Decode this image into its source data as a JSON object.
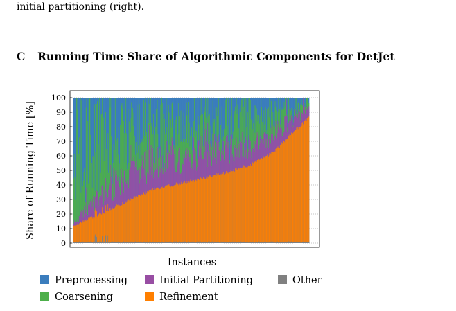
{
  "intro_text": "initial partitioning (right).",
  "section": {
    "number": "C",
    "title": "Running Time Share of Algorithmic Components for DetJet"
  },
  "colors": {
    "preprocessing": "#3b7dbd",
    "coarsening": "#4daf4a",
    "initial_partitioning": "#984ea3",
    "refinement": "#ff7f00",
    "other": "#808080"
  },
  "chart_data": {
    "type": "area",
    "subtype": "stacked-100-percent per instance, instances sorted by refinement share",
    "xlabel": "Instances",
    "ylabel": "Share of Running Time [%]",
    "ylim": [
      0,
      100
    ],
    "yticks": [
      "0",
      "10",
      "20",
      "30",
      "40",
      "50",
      "60",
      "70",
      "80",
      "90",
      "100"
    ],
    "grid": true,
    "legend_position": "bottom",
    "series": [
      {
        "name": "Preprocessing",
        "stack_order": 5
      },
      {
        "name": "Initial Partitioning",
        "stack_order": 3
      },
      {
        "name": "Other",
        "stack_order": 1
      },
      {
        "name": "Coarsening",
        "stack_order": 4
      },
      {
        "name": "Refinement",
        "stack_order": 2
      }
    ],
    "refinement_profile": {
      "x_fraction": [
        0,
        0.05,
        0.15,
        0.25,
        0.35,
        0.5,
        0.65,
        0.75,
        0.85,
        0.95,
        1.0
      ],
      "value": [
        11,
        15,
        22,
        30,
        37,
        42,
        48,
        53,
        62,
        78,
        86
      ]
    },
    "initial_partitioning_profile": {
      "x_fraction": [
        0,
        0.05,
        0.15,
        0.25,
        0.35,
        0.5,
        0.65,
        0.75,
        0.85,
        0.95,
        1.0
      ],
      "value": [
        3,
        8,
        14,
        18,
        20,
        19,
        17,
        15,
        13,
        9,
        6
      ]
    },
    "coarsening_profile": {
      "x_fraction": [
        0,
        0.05,
        0.15,
        0.25,
        0.35,
        0.5,
        0.65,
        0.75,
        0.85,
        0.95,
        1.0
      ],
      "value": [
        55,
        60,
        50,
        38,
        30,
        24,
        22,
        20,
        16,
        8,
        5
      ]
    },
    "num_instances": 420
  },
  "legend": [
    {
      "label": "Preprocessing",
      "color_key": "preprocessing"
    },
    {
      "label": "Initial Partitioning",
      "color_key": "initial_partitioning"
    },
    {
      "label": "Other",
      "color_key": "other"
    },
    {
      "label": "Coarsening",
      "color_key": "coarsening"
    },
    {
      "label": "Refinement",
      "color_key": "refinement"
    }
  ]
}
